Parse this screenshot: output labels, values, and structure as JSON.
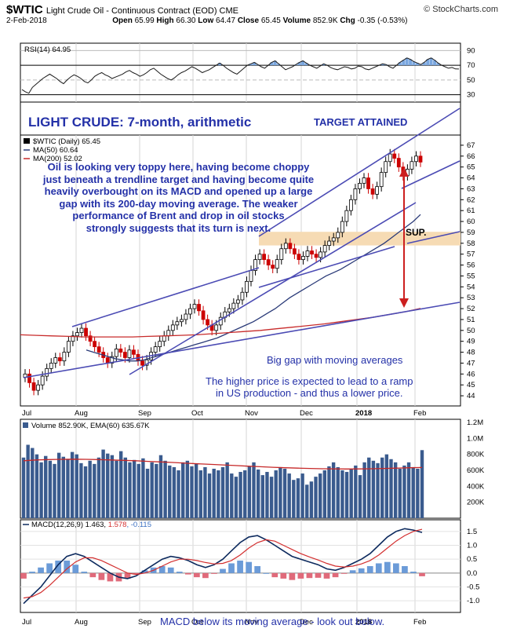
{
  "header": {
    "symbol": "$WTIC",
    "name": "Light Crude Oil - Continuous Contract (EOD) CME",
    "watermark": "© StockCharts.com",
    "date": "2-Feb-2018",
    "open_label": "Open",
    "open": "65.99",
    "high_label": "High",
    "high": "66.30",
    "low_label": "Low",
    "low": "64.47",
    "close_label": "Close",
    "close": "65.45",
    "volume_label": "Volume",
    "volume": "852.9K",
    "chg_label": "Chg",
    "chg": "-0.35 (-0.53%)"
  },
  "rsi": {
    "label": "RSI(14) 64.95",
    "ticks": [
      "90",
      "70",
      "50",
      "30"
    ],
    "tick_values": [
      90,
      70,
      50,
      30
    ],
    "ylim": [
      20,
      100
    ],
    "values": [
      37,
      34,
      32,
      40,
      44,
      48,
      52,
      55,
      58,
      55,
      52,
      48,
      45,
      50,
      54,
      57,
      55,
      52,
      48,
      46,
      50,
      55,
      58,
      60,
      57,
      55,
      52,
      54,
      56,
      58,
      61,
      63,
      60,
      58,
      55,
      57,
      60,
      64,
      66,
      62,
      58,
      55,
      52,
      50,
      53,
      57,
      60,
      62,
      65,
      68,
      66,
      63,
      60,
      62,
      64,
      67,
      70,
      73,
      70,
      66,
      63,
      60,
      58,
      62,
      66,
      70,
      72,
      74,
      71,
      68,
      66,
      70,
      74,
      76,
      72,
      68,
      64,
      66,
      68,
      71,
      74,
      76,
      73,
      70,
      68,
      66,
      69,
      72,
      70,
      67,
      65,
      64,
      66,
      68,
      67,
      65,
      66,
      69,
      68,
      65,
      64,
      66,
      68,
      70,
      72,
      71,
      68,
      66,
      70,
      74,
      77,
      80,
      78,
      75,
      73,
      71,
      74,
      78,
      80,
      77,
      73,
      70,
      68,
      66,
      67,
      65,
      64.95
    ]
  },
  "price_panel": {
    "title": "LIGHT CRUDE: 7-month, arithmetic",
    "target_label": "TARGET ATTAINED",
    "legend_price": "$WTIC (Daily) 65.45",
    "legend_ma50": "MA(50) 60.64",
    "legend_ma200": "MA(200) 52.02",
    "commentary": [
      "Oil is looking very toppy here, having become choppy",
      "just beneath a trendline target and having become quite",
      "heavily overbought on its MACD and opened up a large",
      "gap with its 200-day moving average. The weaker",
      "performance of Brent and drop in oil stocks",
      "strongly suggests that its turn is next."
    ],
    "sup_label": "SUP.",
    "gap_label": "Big gap with moving averages",
    "ramp_note": [
      "The higher price is expected to lead to a ramp",
      "in US production - and thus a lower price."
    ],
    "ticks": [
      "67",
      "66",
      "65",
      "64",
      "63",
      "62",
      "61",
      "60",
      "59",
      "58",
      "57",
      "56",
      "55",
      "54",
      "53",
      "52",
      "51",
      "50",
      "49",
      "48",
      "47",
      "46",
      "45",
      "44"
    ]
  },
  "x_axis": {
    "labels": [
      "Jul",
      "Aug",
      "Sep",
      "Oct",
      "Nov",
      "Dec",
      "2018",
      "Feb"
    ]
  },
  "volume": {
    "label": "Volume 852.90K, EMA(60) 635.67K",
    "ticks": [
      "1.2M",
      "1.0M",
      "800K",
      "600K",
      "400K",
      "200K"
    ]
  },
  "macd": {
    "label_prefix": "MACD(12,26,9)",
    "macd_value": "1.463",
    "signal_value": "1.578",
    "hist_value": "-0.115",
    "ticks": [
      "1.5",
      "1.0",
      "0.5",
      "0.0",
      "-0.5",
      "-1.0"
    ],
    "note": "MACD below its moving average - look out below."
  },
  "colors": {
    "annotation_blue": "#2431a8",
    "trendline": "#4b4bb4",
    "arrow": "#cc1f1f",
    "support_band": "#f6dbb4",
    "ma200": "#c82b2b",
    "ma50": "#2a3a78",
    "rsi_fill": "#7aa7e0",
    "volume_bar": "#3a5b8e",
    "macd_hist_pos": "#6b9bd8",
    "macd_hist_neg": "#e06a7a"
  },
  "chart_data": [
    {
      "type": "line",
      "title": "RSI(14) 64.95",
      "ylim": [
        20,
        100
      ],
      "series": [
        {
          "name": "RSI(14)",
          "values": [
            37,
            34,
            32,
            40,
            44,
            48,
            52,
            55,
            58,
            55,
            52,
            48,
            45,
            50,
            54,
            57,
            55,
            52,
            48,
            46,
            50,
            55,
            58,
            60,
            57,
            55,
            52,
            54,
            56,
            58,
            61,
            63,
            60,
            58,
            55,
            57,
            60,
            64,
            66,
            62,
            58,
            55,
            52,
            50,
            53,
            57,
            60,
            62,
            65,
            68,
            66,
            63,
            60,
            62,
            64,
            67,
            70,
            73,
            70,
            66,
            63,
            60,
            58,
            62,
            66,
            70,
            72,
            74,
            71,
            68,
            66,
            70,
            74,
            76,
            72,
            68,
            64,
            66,
            68,
            71,
            74,
            76,
            73,
            70,
            68,
            66,
            69,
            72,
            70,
            67,
            65,
            64,
            66,
            68,
            67,
            65,
            66,
            69,
            68,
            65,
            64,
            66,
            68,
            70,
            72,
            71,
            68,
            66,
            70,
            74,
            77,
            80,
            78,
            75,
            73,
            71,
            74,
            78,
            80,
            77,
            73,
            70,
            68,
            66,
            67,
            65,
            64.95
          ]
        }
      ]
    },
    {
      "type": "line",
      "title": "$WTIC (Daily) 65.45",
      "ylim": [
        43.5,
        67.5
      ],
      "x_labels": [
        "Jul",
        "Aug",
        "Sep",
        "Oct",
        "Nov",
        "Dec",
        "2018",
        "Feb"
      ],
      "series": [
        {
          "name": "$WTIC (Daily) 65.45",
          "values": [
            46.0,
            45.2,
            44.5,
            45.0,
            45.8,
            46.5,
            47.0,
            47.5,
            47.2,
            48.0,
            49.0,
            49.5,
            49.8,
            50.2,
            49.5,
            49.0,
            48.5,
            48.0,
            47.5,
            47.0,
            47.6,
            48.3,
            48.0,
            47.5,
            48.2,
            47.8,
            47.2,
            46.8,
            47.3,
            48.0,
            48.5,
            49.0,
            49.5,
            50.0,
            50.5,
            50.8,
            51.0,
            51.5,
            52.0,
            52.4,
            51.8,
            51.0,
            50.5,
            50.0,
            50.5,
            51.2,
            51.7,
            52.0,
            52.5,
            52.8,
            53.5,
            54.5,
            55.5,
            56.5,
            57.0,
            56.5,
            56.0,
            55.7,
            56.5,
            57.5,
            58.0,
            57.5,
            57.0,
            56.5,
            56.8,
            57.3,
            57.0,
            56.7,
            57.2,
            57.8,
            58.2,
            58.5,
            59.0,
            60.0,
            61.0,
            62.0,
            63.0,
            63.5,
            64.0,
            63.0,
            62.5,
            63.2,
            64.5,
            65.5,
            66.2,
            65.8,
            65.0,
            64.2,
            64.8,
            65.5,
            66.0,
            65.45
          ]
        },
        {
          "name": "MA(50) 60.64",
          "values": [
            48.2,
            48.0,
            47.8,
            47.6,
            47.4,
            47.3,
            47.2,
            47.2,
            47.3,
            47.5,
            47.7,
            47.9,
            48.1,
            48.3,
            48.5,
            48.7,
            48.9,
            49.1,
            49.3,
            49.6,
            49.9,
            50.2,
            50.5,
            50.8,
            51.2,
            51.6,
            52.0,
            52.5,
            53.0,
            53.4,
            53.8,
            54.2,
            54.6,
            55.0,
            55.3,
            55.6,
            56.0,
            56.4,
            56.8,
            57.2,
            57.6,
            58.0,
            58.5,
            59.0,
            59.5,
            60.0,
            60.64
          ]
        },
        {
          "name": "MA(200) 52.02",
          "values": [
            49.6,
            49.55,
            49.5,
            49.45,
            49.4,
            49.4,
            49.4,
            49.4,
            49.45,
            49.5,
            49.55,
            49.6,
            49.7,
            49.8,
            49.9,
            50.0,
            50.15,
            50.3,
            50.45,
            50.6,
            50.8,
            51.0,
            51.2,
            51.45,
            51.7,
            52.02
          ]
        }
      ],
      "annotations": [
        "LIGHT CRUDE: 7-month, arithmetic",
        "TARGET ATTAINED",
        "SUP.",
        "Big gap with moving averages"
      ]
    },
    {
      "type": "bar",
      "title": "Volume 852.90K, EMA(60) 635.67K",
      "ylim": [
        0,
        1200000
      ],
      "series": [
        {
          "name": "Volume",
          "values": [
            760000,
            920000,
            880000,
            800000,
            700000,
            780000,
            720000,
            680000,
            820000,
            770000,
            740000,
            830000,
            800000,
            690000,
            650000,
            720000,
            680000,
            760000,
            860000,
            810000,
            790000,
            720000,
            840000,
            760000,
            700000,
            730000,
            680000,
            750000,
            620000,
            700000,
            680000,
            790000,
            720000,
            660000,
            640000,
            600000,
            700000,
            720000,
            650000,
            680000,
            600000,
            640000,
            560000,
            620000,
            600000,
            640000,
            700000,
            560000,
            520000,
            580000,
            600000,
            650000,
            700000,
            610000,
            540000,
            580000,
            520000,
            600000,
            640000,
            620000,
            560000,
            480000,
            500000,
            560000,
            420000,
            460000,
            520000,
            560000,
            600000,
            650000,
            700000,
            640000,
            600000,
            580000,
            620000,
            660000,
            540000,
            700000,
            760000,
            720000,
            690000,
            760000,
            800000,
            740000,
            700000,
            620000,
            660000,
            700000,
            640000,
            620000,
            852900
          ]
        },
        {
          "name": "EMA(60)",
          "values": [
            720000,
            730000,
            735000,
            738000,
            740000,
            738000,
            735000,
            730000,
            725000,
            720000,
            712000,
            705000,
            698000,
            690000,
            682000,
            675000,
            668000,
            660000,
            652000,
            645000,
            638000,
            632000,
            628000,
            624000,
            620000,
            618000,
            617000,
            618000,
            620000,
            624000,
            628000,
            632000,
            635670
          ]
        }
      ]
    },
    {
      "type": "line",
      "title": "MACD(12,26,9) 1.463, 1.578, -0.115",
      "ylim": [
        -1.25,
        1.75
      ],
      "series": [
        {
          "name": "MACD",
          "values": [
            -1.1,
            -0.8,
            -0.5,
            -0.1,
            0.3,
            0.6,
            0.7,
            0.6,
            0.4,
            0.2,
            0.0,
            -0.15,
            -0.2,
            -0.1,
            0.1,
            0.3,
            0.5,
            0.6,
            0.55,
            0.45,
            0.3,
            0.2,
            0.3,
            0.5,
            0.8,
            1.1,
            1.3,
            1.35,
            1.2,
            1.0,
            0.8,
            0.6,
            0.5,
            0.4,
            0.3,
            0.15,
            0.1,
            0.2,
            0.35,
            0.5,
            0.7,
            1.0,
            1.3,
            1.5,
            1.6,
            1.55,
            1.463
          ]
        },
        {
          "name": "Signal",
          "values": [
            -0.9,
            -0.85,
            -0.7,
            -0.45,
            -0.15,
            0.15,
            0.4,
            0.55,
            0.55,
            0.45,
            0.3,
            0.15,
            0.0,
            -0.05,
            0.0,
            0.1,
            0.25,
            0.4,
            0.5,
            0.5,
            0.45,
            0.38,
            0.33,
            0.35,
            0.45,
            0.65,
            0.9,
            1.1,
            1.2,
            1.15,
            1.0,
            0.85,
            0.7,
            0.58,
            0.47,
            0.35,
            0.25,
            0.22,
            0.25,
            0.33,
            0.45,
            0.65,
            0.9,
            1.15,
            1.35,
            1.5,
            1.578
          ]
        }
      ]
    }
  ]
}
